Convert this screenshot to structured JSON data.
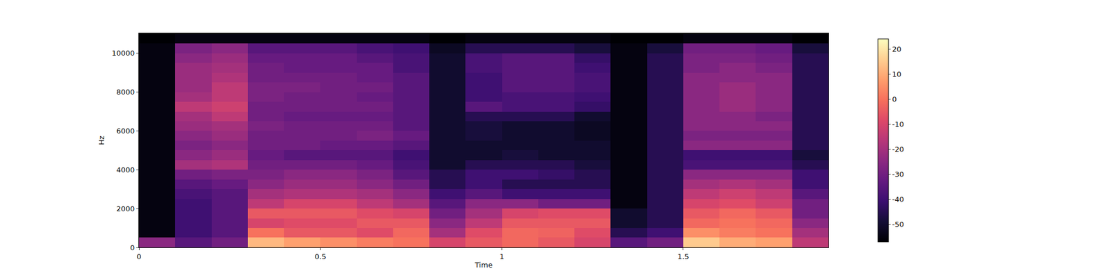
{
  "chart_data": {
    "type": "heatmap",
    "x_label": "Time",
    "y_label": "Hz",
    "x": [
      0.05,
      0.15,
      0.25,
      0.35,
      0.45,
      0.55,
      0.65,
      0.75,
      0.85,
      0.95,
      1.05,
      1.15,
      1.25,
      1.35,
      1.45,
      1.55,
      1.65,
      1.75,
      1.85
    ],
    "y": [
      250,
      750,
      1250,
      1750,
      2250,
      2750,
      3250,
      3750,
      4250,
      4750,
      5250,
      5750,
      6250,
      6750,
      7250,
      7750,
      8250,
      8750,
      9250,
      9750,
      10250,
      10750
    ],
    "z": [
      [
        -25,
        -35,
        -30,
        12,
        8,
        5,
        2,
        0,
        -10,
        -5,
        -2,
        -5,
        -10,
        -35,
        -30,
        15,
        10,
        8,
        -15
      ],
      [
        -55,
        -40,
        -35,
        0,
        -5,
        -5,
        -8,
        -2,
        -20,
        -8,
        -2,
        -3,
        -8,
        -45,
        -40,
        5,
        2,
        0,
        -20
      ],
      [
        -55,
        -40,
        -35,
        -10,
        -8,
        -8,
        -5,
        -5,
        -25,
        -15,
        -5,
        -5,
        -5,
        -50,
        -45,
        -2,
        0,
        -2,
        -25
      ],
      [
        -55,
        -40,
        -35,
        -5,
        -5,
        -5,
        -8,
        -10,
        -30,
        -20,
        -10,
        -8,
        -8,
        -50,
        -45,
        -5,
        -2,
        -5,
        -30
      ],
      [
        -55,
        -40,
        -35,
        -15,
        -10,
        -10,
        -15,
        -20,
        -35,
        -25,
        -25,
        -30,
        -30,
        -55,
        -45,
        -10,
        -8,
        -12,
        -30
      ],
      [
        -55,
        -38,
        -35,
        -20,
        -18,
        -18,
        -20,
        -25,
        -40,
        -35,
        -40,
        -40,
        -40,
        -55,
        -45,
        -15,
        -12,
        -15,
        -35
      ],
      [
        -55,
        -35,
        -32,
        -25,
        -22,
        -22,
        -25,
        -30,
        -45,
        -40,
        -45,
        -45,
        -45,
        -55,
        -45,
        -20,
        -18,
        -20,
        -40
      ],
      [
        -55,
        -30,
        -28,
        -28,
        -25,
        -25,
        -28,
        -35,
        -45,
        -40,
        -40,
        -42,
        -45,
        -55,
        -45,
        -25,
        -25,
        -25,
        -40
      ],
      [
        -55,
        -20,
        -18,
        -30,
        -30,
        -30,
        -32,
        -38,
        -50,
        -45,
        -45,
        -45,
        -48,
        -55,
        -45,
        -38,
        -38,
        -38,
        -45
      ],
      [
        -55,
        -25,
        -22,
        -32,
        -35,
        -35,
        -35,
        -40,
        -50,
        -50,
        -48,
        -50,
        -50,
        -55,
        -45,
        -40,
        -40,
        -40,
        -48
      ],
      [
        -55,
        -28,
        -25,
        -30,
        -30,
        -32,
        -32,
        -35,
        -50,
        -50,
        -50,
        -50,
        -50,
        -55,
        -45,
        -25,
        -25,
        -25,
        -45
      ],
      [
        -55,
        -25,
        -22,
        -30,
        -30,
        -30,
        -28,
        -32,
        -50,
        -48,
        -50,
        -50,
        -52,
        -55,
        -45,
        -28,
        -28,
        -28,
        -45
      ],
      [
        -55,
        -22,
        -20,
        -28,
        -30,
        -30,
        -30,
        -35,
        -50,
        -48,
        -50,
        -50,
        -52,
        -55,
        -45,
        -25,
        -25,
        -25,
        -45
      ],
      [
        -55,
        -20,
        -15,
        -30,
        -32,
        -32,
        -32,
        -35,
        -50,
        -45,
        -45,
        -45,
        -50,
        -55,
        -45,
        -25,
        -25,
        -28,
        -45
      ],
      [
        -55,
        -15,
        -12,
        -30,
        -30,
        -30,
        -30,
        -35,
        -50,
        -35,
        -38,
        -38,
        -42,
        -55,
        -45,
        -25,
        -22,
        -25,
        -45
      ],
      [
        -55,
        -20,
        -15,
        -28,
        -30,
        -30,
        -32,
        -35,
        -50,
        -40,
        -38,
        -38,
        -40,
        -55,
        -45,
        -25,
        -22,
        -25,
        -45
      ],
      [
        -55,
        -22,
        -15,
        -28,
        -28,
        -30,
        -30,
        -35,
        -50,
        -40,
        -35,
        -35,
        -38,
        -55,
        -45,
        -25,
        -22,
        -25,
        -45
      ],
      [
        -55,
        -22,
        -18,
        -30,
        -30,
        -30,
        -32,
        -35,
        -50,
        -40,
        -35,
        -35,
        -38,
        -55,
        -45,
        -25,
        -25,
        -25,
        -45
      ],
      [
        -55,
        -22,
        -20,
        -30,
        -32,
        -32,
        -32,
        -38,
        -50,
        -38,
        -35,
        -35,
        -40,
        -55,
        -45,
        -28,
        -25,
        -28,
        -45
      ],
      [
        -55,
        -25,
        -22,
        -32,
        -32,
        -32,
        -35,
        -38,
        -50,
        -38,
        -35,
        -35,
        -42,
        -55,
        -45,
        -28,
        -28,
        -30,
        -45
      ],
      [
        -55,
        -28,
        -25,
        -35,
        -35,
        -35,
        -38,
        -40,
        -52,
        -45,
        -45,
        -45,
        -48,
        -55,
        -48,
        -30,
        -30,
        -32,
        -48
      ],
      [
        -57,
        -55,
        -55,
        -55,
        -55,
        -55,
        -55,
        -55,
        -57,
        -55,
        -55,
        -55,
        -55,
        -57,
        -57,
        -55,
        -55,
        -55,
        -57
      ]
    ],
    "xlim": [
      0,
      1.9
    ],
    "xticks": [
      0,
      0.5,
      1,
      1.5
    ],
    "ylim": [
      0,
      11025
    ],
    "yticks": [
      0,
      2000,
      4000,
      6000,
      8000,
      10000
    ],
    "zlim": [
      -57,
      24
    ],
    "zticks": [
      -50,
      -40,
      -30,
      -20,
      -10,
      0,
      10,
      20
    ]
  }
}
